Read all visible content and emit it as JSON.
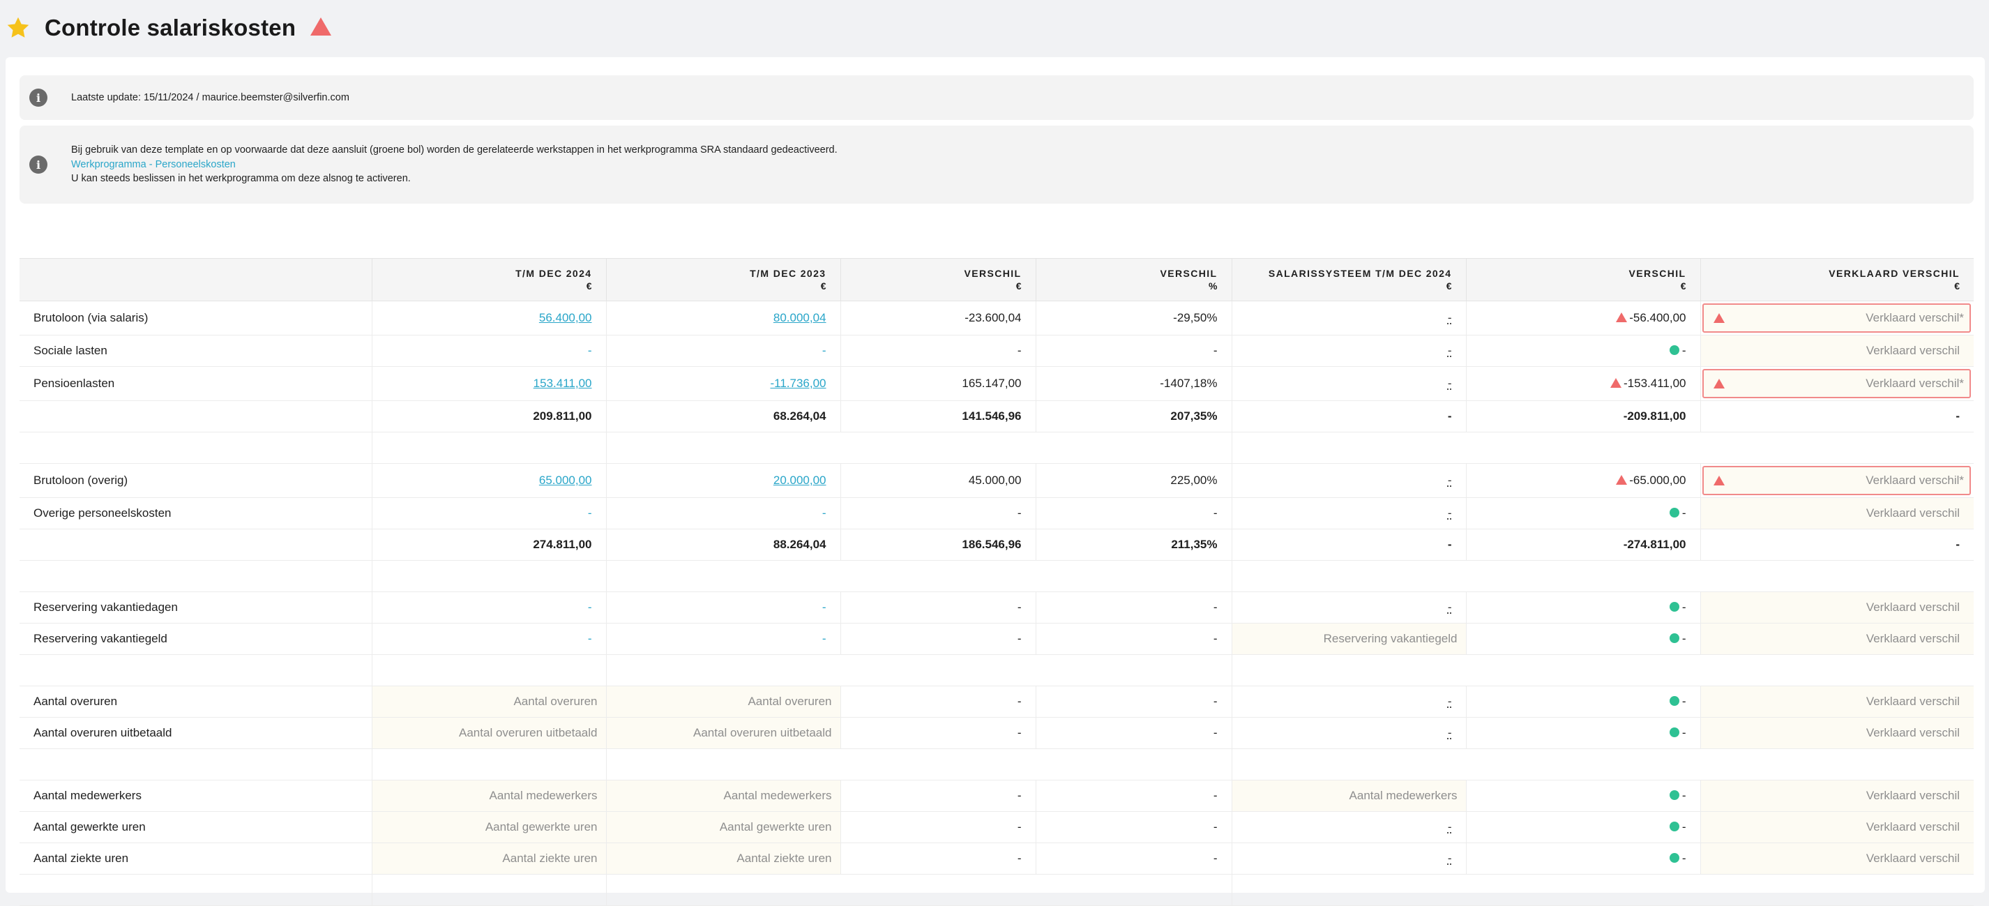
{
  "header": {
    "title": "Controle salariskosten"
  },
  "info": {
    "update": "Laatste update: 15/11/2024 / maurice.beemster@silverfin.com",
    "line1": "Bij gebruik van deze template en op voorwaarde dat deze aansluit (groene bol) worden de gerelateerde werkstappen in het werkprogramma SRA standaard gedeactiveerd.",
    "link": "Werkprogramma - Personeelskosten",
    "line3": "U kan steeds beslissen in het werkprogramma om deze alsnog te activeren."
  },
  "table": {
    "headers": {
      "c1": "T/M DEC 2024",
      "c1_unit": "€",
      "c2": "T/M DEC 2023",
      "c2_unit": "€",
      "c3": "VERSCHIL",
      "c3_unit": "€",
      "c4": "VERSCHIL",
      "c4_unit": "%",
      "c5": "SALARISSYSTEEM T/M DEC 2024",
      "c5_unit": "€",
      "c6": "VERSCHIL",
      "c6_unit": "€",
      "c7": "VERKLAARD VERSCHIL",
      "c7_unit": "€"
    },
    "rows": {
      "r1": {
        "label": "Brutoloon (via salaris)",
        "c1": "56.400,00",
        "c2": "80.000,04",
        "c3": "-23.600,04",
        "c4": "-29,50%",
        "c5": "-",
        "c6": "-56.400,00",
        "c7": "Verklaard verschil*"
      },
      "r2": {
        "label": "Sociale lasten",
        "c1": "-",
        "c2": "-",
        "c3": "-",
        "c4": "-",
        "c5": "-",
        "c6": "-",
        "c7": "Verklaard verschil"
      },
      "r3": {
        "label": "Pensioenlasten",
        "c1": "153.411,00",
        "c2": "-11.736,00",
        "c3": "165.147,00",
        "c4": "-1407,18%",
        "c5": "-",
        "c6": "-153.411,00",
        "c7": "Verklaard verschil*"
      },
      "t1": {
        "c1": "209.811,00",
        "c2": "68.264,04",
        "c3": "141.546,96",
        "c4": "207,35%",
        "c5": "-",
        "c6": "-209.811,00",
        "c7": "-"
      },
      "r4": {
        "label": "Brutoloon (overig)",
        "c1": "65.000,00",
        "c2": "20.000,00",
        "c3": "45.000,00",
        "c4": "225,00%",
        "c5": "-",
        "c6": "-65.000,00",
        "c7": "Verklaard verschil*"
      },
      "r5": {
        "label": "Overige personeelskosten",
        "c1": "-",
        "c2": "-",
        "c3": "-",
        "c4": "-",
        "c5": "-",
        "c6": "-",
        "c7": "Verklaard verschil"
      },
      "t2": {
        "c1": "274.811,00",
        "c2": "88.264,04",
        "c3": "186.546,96",
        "c4": "211,35%",
        "c5": "-",
        "c6": "-274.811,00",
        "c7": "-"
      },
      "r6": {
        "label": "Reservering vakantiedagen",
        "c1": "-",
        "c2": "-",
        "c3": "-",
        "c4": "-",
        "c5": "-",
        "c6": "-",
        "c7": "Verklaard verschil"
      },
      "r7": {
        "label": "Reservering vakantiegeld",
        "c1": "-",
        "c2": "-",
        "c3": "-",
        "c4": "-",
        "c5": "Reservering vakantiegeld",
        "c6": "-",
        "c7": "Verklaard verschil"
      },
      "r8": {
        "label": "Aantal overuren",
        "c1": "Aantal overuren",
        "c2": "Aantal overuren",
        "c3": "-",
        "c4": "-",
        "c5": "-",
        "c6": "-",
        "c7": "Verklaard verschil"
      },
      "r9": {
        "label": "Aantal overuren uitbetaald",
        "c1": "Aantal overuren uitbetaald",
        "c2": "Aantal overuren uitbetaald",
        "c3": "-",
        "c4": "-",
        "c5": "-",
        "c6": "-",
        "c7": "Verklaard verschil"
      },
      "r10": {
        "label": "Aantal medewerkers",
        "c1": "Aantal medewerkers",
        "c2": "Aantal medewerkers",
        "c3": "-",
        "c4": "-",
        "c5": "Aantal medewerkers",
        "c6": "-",
        "c7": "Verklaard verschil"
      },
      "r11": {
        "label": "Aantal gewerkte uren",
        "c1": "Aantal gewerkte uren",
        "c2": "Aantal gewerkte uren",
        "c3": "-",
        "c4": "-",
        "c5": "-",
        "c6": "-",
        "c7": "Verklaard verschil"
      },
      "r12": {
        "label": "Aantal ziekte uren",
        "c1": "Aantal ziekte uren",
        "c2": "Aantal ziekte uren",
        "c3": "-",
        "c4": "-",
        "c5": "-",
        "c6": "-",
        "c7": "Verklaard verschil"
      }
    }
  },
  "colors": {
    "accent": "#2aa6c9",
    "warning": "#ef6a6a",
    "ok": "#2ec193",
    "star": "#f6c21b"
  },
  "icons": {
    "favorite": "star-icon",
    "status": "warning-triangle-icon",
    "info": "info-icon",
    "ok": "green-dot-icon"
  }
}
